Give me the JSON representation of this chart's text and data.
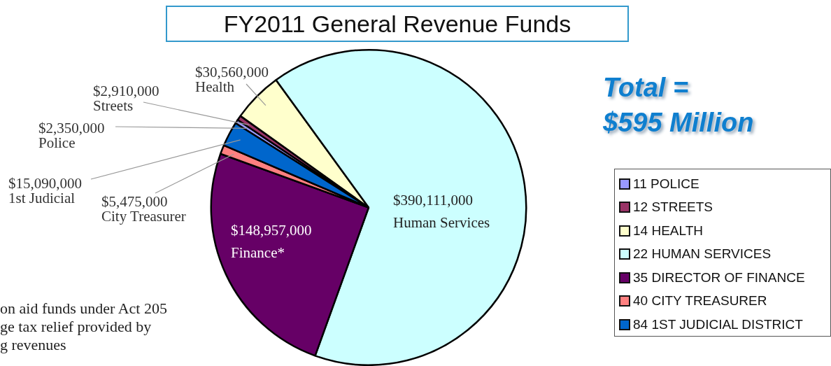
{
  "chart_data": {
    "type": "pie",
    "title": "FY2011 General Revenue Funds",
    "categories": [
      "11 POLICE",
      "12 STREETS",
      "14 HEALTH",
      "22 HUMAN SERVICES",
      "35 DIRECTOR OF FINANCE",
      "40 CITY TREASURER",
      "84 1ST JUDICIAL DISTRICT"
    ],
    "values": [
      2350000,
      2910000,
      30560000,
      390111000,
      148957000,
      5475000,
      15090000
    ],
    "colors": [
      "#9999ff",
      "#993366",
      "#ffffcc",
      "#ccffff",
      "#660066",
      "#ff8080",
      "#0066cc"
    ],
    "value_labels": [
      "$2,350,000\nPolice",
      "$2,910,000\nStreets",
      "$30,560,000\nHealth",
      "$390,111,000\nHuman Services",
      "$148,957,000\nFinance*",
      "$5,475,000\nCity Treasurer",
      "$15,090,000\n1st Judicial"
    ],
    "annotations": [
      "Total =\n$595 Million",
      "on aid funds under Act 205\nge tax relief provided by\ng revenues"
    ],
    "legend": "right"
  }
}
